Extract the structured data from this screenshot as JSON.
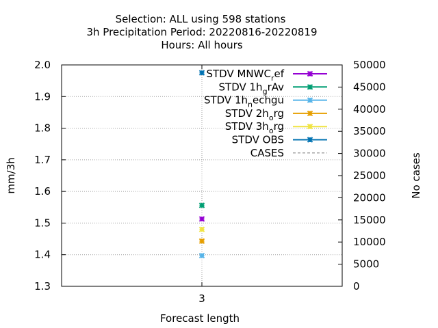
{
  "chart_data": {
    "type": "scatter",
    "title": [
      "Selection: ALL using   598 stations",
      "3h Precipitation   Period: 20220816-20220819",
      "Hours:  All hours"
    ],
    "xlabel": "Forecast length",
    "ylabel": "mm/3h",
    "y2label": "No cases",
    "x": [
      3
    ],
    "x_ticks": [
      "3"
    ],
    "ylim": [
      1.3,
      2.0
    ],
    "y_ticks": [
      1.3,
      1.4,
      1.5,
      1.6,
      1.7,
      1.8,
      1.9,
      2.0
    ],
    "y2lim": [
      0,
      50000
    ],
    "y2_ticks": [
      0,
      5000,
      10000,
      15000,
      20000,
      25000,
      30000,
      35000,
      40000,
      45000,
      50000
    ],
    "grid": true,
    "legend_position": "top-right",
    "series": [
      {
        "name": "STDV MNWC_ref",
        "legend": [
          "STDV MNWC",
          "r",
          "ef"
        ],
        "color": "#9400d3",
        "axis": "y",
        "values": [
          1.513
        ]
      },
      {
        "name": "STDV 1h_grAv",
        "legend": [
          "STDV 1h",
          "g",
          "rAv"
        ],
        "color": "#009e73",
        "axis": "y",
        "values": [
          1.556
        ]
      },
      {
        "name": "STDV 1h_nechgu",
        "legend": [
          "STDV 1h",
          "n",
          "echgu"
        ],
        "color": "#56b4e9",
        "axis": "y",
        "values": [
          1.397
        ]
      },
      {
        "name": "STDV 2h_org",
        "legend": [
          "STDV 2h",
          "o",
          "rg"
        ],
        "color": "#e69f00",
        "axis": "y",
        "values": [
          1.443
        ]
      },
      {
        "name": "STDV 3h_org",
        "legend": [
          "STDV 3h",
          "o",
          "rg"
        ],
        "color": "#f0e442",
        "axis": "y",
        "values": [
          1.48
        ]
      },
      {
        "name": "STDV OBS",
        "legend": [
          "STDV OBS",
          "",
          ""
        ],
        "color": "#0072b2",
        "axis": "y",
        "values": [
          1.975
        ]
      },
      {
        "name": "CASES",
        "legend": [
          "CASES",
          "",
          ""
        ],
        "color": "#888888",
        "axis": "y2",
        "dashed": true,
        "values": [
          49500
        ]
      }
    ]
  }
}
